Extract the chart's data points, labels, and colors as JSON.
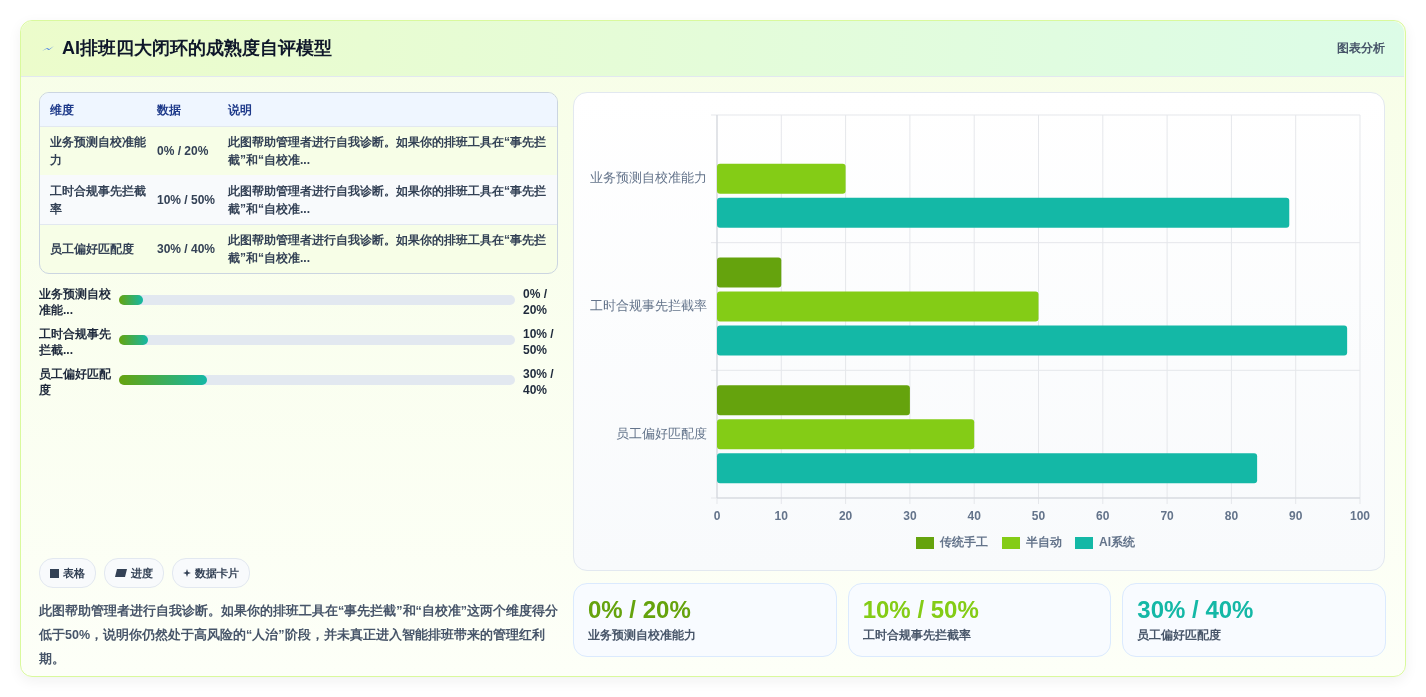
{
  "chart_data": [
    {
      "type": "other",
      "title": "AI排班四大闭环的成熟度自评模型",
      "annotations": [
        "图表分析"
      ]
    },
    {
      "type": "bar",
      "orientation": "horizontal",
      "categories": [
        "业务预测自校准能力",
        "工时合规事先拦截率",
        "员工偏好匹配度"
      ],
      "series": [
        {
          "name": "传统手工",
          "color": "#65a30d",
          "values": [
            0,
            10,
            30
          ]
        },
        {
          "name": "半自动",
          "color": "#84cc16",
          "values": [
            20,
            50,
            40
          ]
        },
        {
          "name": "AI系统",
          "color": "#14b8a6",
          "values": [
            89,
            98,
            84
          ]
        }
      ],
      "xlim": [
        0,
        100
      ],
      "xticks": [
        0,
        10,
        20,
        30,
        40,
        50,
        60,
        70,
        80,
        90,
        100
      ],
      "grid": true,
      "legend": "bottom"
    },
    {
      "type": "other",
      "annotations": [
        "维度",
        "数据",
        "说明",
        "业务预测自校准能力",
        "0% / 20%",
        "此图帮助管理者进行自我诊断。如果你的排班工具在“事先拦截”和“自校准...",
        "工时合规事先拦截率",
        "10% / 50%",
        "此图帮助管理者进行自我诊断。如果你的排班工具在“事先拦截”和“自校准...",
        "员工偏好匹配度",
        "30% / 40%",
        "此图帮助管理者进行自我诊断。如果你的排班工具在“事先拦截”和“自校准..."
      ]
    },
    {
      "type": "other",
      "categories": [
        "业务预测自校准能...",
        "工时合规事先拦截...",
        "员工偏好匹配度"
      ],
      "annotations": [
        "0% / 20%",
        "10% / 50%",
        "30% / 40%"
      ]
    },
    {
      "type": "other",
      "categories": [
        "表格",
        "进度",
        "数据卡片"
      ],
      "subtitle": "此图帮助管理者进行自我诊断。如果你的排班工具在“事先拦截”和“自校准”这两个维度得分低于50%，说明你仍然处于高风险的“人治”阶段，并未真正进入智能排班带来的管理红利期。"
    },
    {
      "type": "other",
      "categories": [
        "业务预测自校准能力",
        "工时合规事先拦截率",
        "员工偏好匹配度"
      ],
      "annotations": [
        "0% / 20%",
        "10% / 50%",
        "30% / 40%"
      ]
    }
  ]
}
